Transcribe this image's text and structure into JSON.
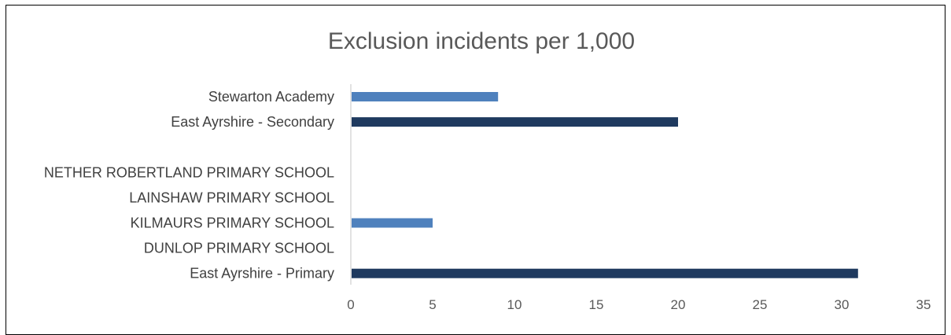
{
  "chart_data": {
    "type": "bar",
    "orientation": "horizontal",
    "title": "Exclusion incidents per 1,000",
    "xlabel": "",
    "ylabel": "",
    "xlim": [
      0,
      35
    ],
    "x_ticks": [
      0,
      5,
      10,
      15,
      20,
      25,
      30,
      35
    ],
    "grid": false,
    "legend": "none",
    "categories": [
      "Stewarton Academy",
      "East Ayrshire - Secondary",
      "",
      "NETHER ROBERTLAND PRIMARY SCHOOL",
      "LAINSHAW PRIMARY SCHOOL",
      "KILMAURS PRIMARY SCHOOL",
      "DUNLOP PRIMARY SCHOOL",
      "East Ayrshire - Primary"
    ],
    "values": [
      9,
      20,
      0,
      0,
      0,
      5,
      0,
      31
    ],
    "bar_colors": [
      "#4f81bd",
      "#1f3a5f",
      "#4f81bd",
      "#4f81bd",
      "#4f81bd",
      "#4f81bd",
      "#4f81bd",
      "#1f3a5f"
    ]
  },
  "colors": {
    "school_bar": "#4f81bd",
    "authority_bar": "#1f3a5f",
    "axis_line": "#d9d9d9",
    "title": "#595959"
  }
}
